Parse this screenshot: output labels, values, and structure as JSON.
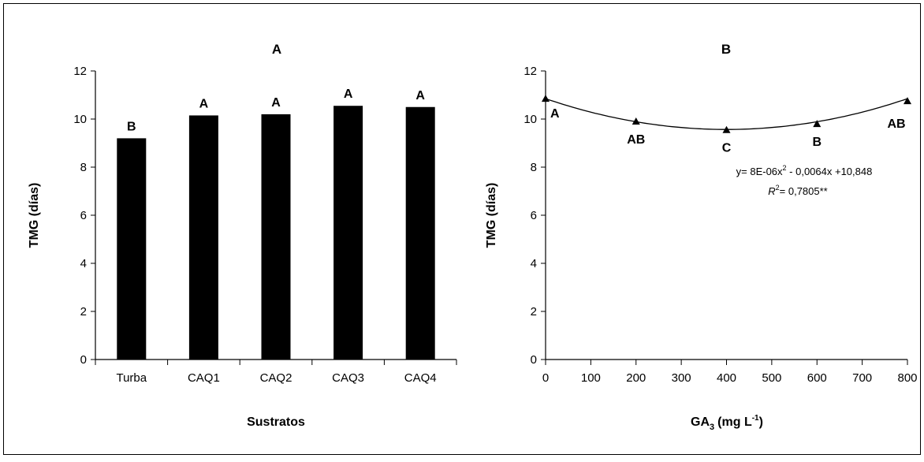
{
  "chart_data": [
    {
      "type": "bar",
      "title": "A",
      "xlabel": "Sustratos",
      "ylabel": "TMG (días)",
      "ylim": [
        0,
        12
      ],
      "yticks": [
        0,
        2,
        4,
        6,
        8,
        10,
        12
      ],
      "categories": [
        "Turba",
        "CAQ1",
        "CAQ2",
        "CAQ3",
        "CAQ4"
      ],
      "values": [
        9.2,
        10.15,
        10.2,
        10.55,
        10.5
      ],
      "letters": [
        "B",
        "A",
        "A",
        "A",
        "A"
      ],
      "bar_color": "#000000",
      "grid": false
    },
    {
      "type": "scatter",
      "title": "B",
      "xlabel": "GA",
      "xlabel_sub": "3",
      "xlabel_units": "(mg L",
      "xlabel_sup": "-1",
      "xlabel_close": ")",
      "ylabel": "TMG (días)",
      "xlim": [
        0,
        800
      ],
      "ylim": [
        0,
        12
      ],
      "xticks": [
        0,
        100,
        200,
        300,
        400,
        500,
        600,
        700,
        800
      ],
      "yticks": [
        0,
        2,
        4,
        6,
        8,
        10,
        12
      ],
      "x": [
        0,
        200,
        400,
        600,
        800
      ],
      "y": [
        10.85,
        9.9,
        9.55,
        9.8,
        10.75
      ],
      "letters": [
        "A",
        "AB",
        "C",
        "B",
        "AB"
      ],
      "fit": {
        "type": "quadratic",
        "a": 8e-06,
        "b": -0.0064,
        "c": 10.848
      },
      "equation_lead": "y= 8E-06x",
      "equation_sup": "2",
      "equation_tail": " - 0,0064x +10,848",
      "r2_label": "R",
      "r2_sup": "2",
      "r2_value": "= 0,7805**",
      "grid": false
    }
  ]
}
